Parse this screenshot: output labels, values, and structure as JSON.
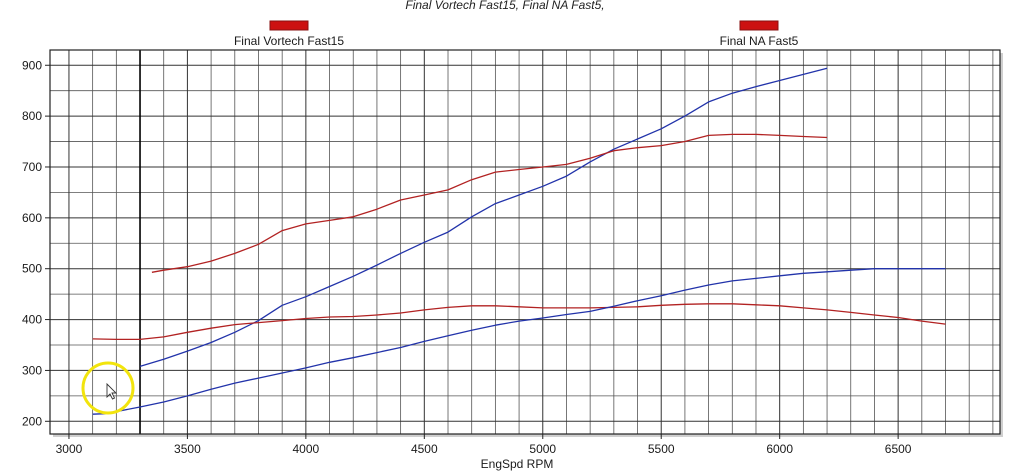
{
  "chart_data": {
    "type": "line",
    "title": "Final Vortech Fast15, Final NA Fast5,",
    "xlabel": "EngSpd RPM",
    "ylabel": "",
    "xlim": [
      2920,
      6930
    ],
    "ylim": [
      175,
      930
    ],
    "x_ticks": [
      3000,
      3500,
      4000,
      4500,
      5000,
      5500,
      6000,
      6500
    ],
    "y_ticks": [
      200,
      300,
      400,
      500,
      600,
      700,
      800,
      900
    ],
    "legend": [
      {
        "label": "Final Vortech Fast15",
        "color": "#cc1111"
      },
      {
        "label": "Final NA Fast5",
        "color": "#cc1111"
      }
    ],
    "series": [
      {
        "color": "#2233aa",
        "points": [
          [
            3300,
            308
          ],
          [
            3400,
            322
          ],
          [
            3500,
            338
          ],
          [
            3600,
            355
          ],
          [
            3700,
            375
          ],
          [
            3800,
            398
          ],
          [
            3900,
            428
          ],
          [
            4000,
            445
          ],
          [
            4100,
            465
          ],
          [
            4200,
            485
          ],
          [
            4300,
            507
          ],
          [
            4400,
            530
          ],
          [
            4500,
            552
          ],
          [
            4600,
            572
          ],
          [
            4700,
            602
          ],
          [
            4800,
            628
          ],
          [
            4900,
            645
          ],
          [
            5000,
            662
          ],
          [
            5100,
            682
          ],
          [
            5200,
            710
          ],
          [
            5300,
            735
          ],
          [
            5400,
            755
          ],
          [
            5500,
            775
          ],
          [
            5600,
            800
          ],
          [
            5700,
            828
          ],
          [
            5800,
            845
          ],
          [
            5900,
            858
          ],
          [
            6000,
            870
          ],
          [
            6100,
            882
          ],
          [
            6200,
            894
          ]
        ]
      },
      {
        "color": "#b22222",
        "points": [
          [
            3350,
            493
          ],
          [
            3400,
            497
          ],
          [
            3500,
            504
          ],
          [
            3600,
            515
          ],
          [
            3700,
            530
          ],
          [
            3800,
            548
          ],
          [
            3900,
            575
          ],
          [
            4000,
            588
          ],
          [
            4100,
            595
          ],
          [
            4200,
            602
          ],
          [
            4300,
            617
          ],
          [
            4400,
            635
          ],
          [
            4500,
            645
          ],
          [
            4600,
            655
          ],
          [
            4700,
            675
          ],
          [
            4800,
            690
          ],
          [
            4900,
            695
          ],
          [
            5000,
            700
          ],
          [
            5100,
            705
          ],
          [
            5200,
            717
          ],
          [
            5300,
            732
          ],
          [
            5400,
            738
          ],
          [
            5500,
            742
          ],
          [
            5600,
            750
          ],
          [
            5700,
            762
          ],
          [
            5800,
            764
          ],
          [
            5900,
            764
          ],
          [
            6000,
            762
          ],
          [
            6100,
            760
          ],
          [
            6200,
            758
          ]
        ]
      },
      {
        "color": "#b22222",
        "points": [
          [
            3100,
            362
          ],
          [
            3200,
            361
          ],
          [
            3300,
            361
          ],
          [
            3400,
            366
          ],
          [
            3500,
            375
          ],
          [
            3600,
            383
          ],
          [
            3700,
            390
          ],
          [
            3800,
            394
          ],
          [
            3900,
            398
          ],
          [
            4000,
            402
          ],
          [
            4100,
            405
          ],
          [
            4200,
            406
          ],
          [
            4300,
            409
          ],
          [
            4400,
            413
          ],
          [
            4500,
            419
          ],
          [
            4600,
            424
          ],
          [
            4700,
            427
          ],
          [
            4800,
            427
          ],
          [
            4900,
            425
          ],
          [
            5000,
            423
          ],
          [
            5100,
            423
          ],
          [
            5200,
            423
          ],
          [
            5300,
            424
          ],
          [
            5400,
            425
          ],
          [
            5500,
            428
          ],
          [
            5600,
            430
          ],
          [
            5700,
            431
          ],
          [
            5800,
            431
          ],
          [
            5900,
            429
          ],
          [
            6000,
            427
          ],
          [
            6100,
            423
          ],
          [
            6200,
            419
          ],
          [
            6300,
            414
          ],
          [
            6400,
            409
          ],
          [
            6500,
            404
          ],
          [
            6600,
            397
          ],
          [
            6700,
            391
          ]
        ]
      },
      {
        "color": "#2233aa",
        "points": [
          [
            3100,
            214
          ],
          [
            3150,
            215
          ],
          [
            3200,
            219
          ],
          [
            3300,
            228
          ],
          [
            3400,
            238
          ],
          [
            3500,
            250
          ],
          [
            3600,
            263
          ],
          [
            3700,
            275
          ],
          [
            3800,
            285
          ],
          [
            3900,
            295
          ],
          [
            4000,
            305
          ],
          [
            4100,
            316
          ],
          [
            4200,
            325
          ],
          [
            4300,
            335
          ],
          [
            4400,
            345
          ],
          [
            4500,
            357
          ],
          [
            4600,
            368
          ],
          [
            4700,
            379
          ],
          [
            4800,
            389
          ],
          [
            4900,
            397
          ],
          [
            5000,
            403
          ],
          [
            5100,
            410
          ],
          [
            5200,
            416
          ],
          [
            5300,
            426
          ],
          [
            5400,
            437
          ],
          [
            5500,
            447
          ],
          [
            5600,
            458
          ],
          [
            5700,
            468
          ],
          [
            5800,
            476
          ],
          [
            5900,
            481
          ],
          [
            6000,
            486
          ],
          [
            6100,
            491
          ],
          [
            6200,
            494
          ],
          [
            6300,
            497
          ],
          [
            6400,
            500
          ],
          [
            6500,
            500
          ],
          [
            6600,
            500
          ],
          [
            6700,
            500
          ]
        ]
      }
    ],
    "grid": true,
    "minor_grid": true,
    "cursor_x": 3300
  }
}
